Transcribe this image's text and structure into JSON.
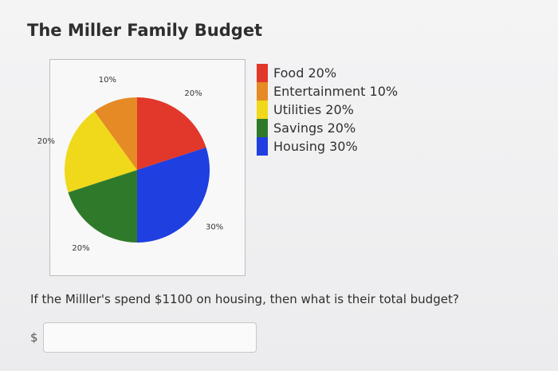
{
  "page": {
    "title": "The Miller Family Budget"
  },
  "chart_data": {
    "type": "pie",
    "title": "",
    "slices": [
      {
        "name": "Food",
        "value": 20,
        "label": "20%",
        "color": "#e2372b"
      },
      {
        "name": "Housing",
        "value": 30,
        "label": "30%",
        "color": "#1f3fe0"
      },
      {
        "name": "Savings",
        "value": 20,
        "label": "20%",
        "color": "#2f7a2a"
      },
      {
        "name": "Utilities",
        "value": 20,
        "label": "20%",
        "color": "#f0d81a"
      },
      {
        "name": "Entertainment",
        "value": 10,
        "label": "10%",
        "color": "#e58a25"
      }
    ],
    "legend": [
      {
        "text": "Food 20%",
        "color": "#e2372b"
      },
      {
        "text": "Entertainment 10%",
        "color": "#e58a25"
      },
      {
        "text": "Utilities 20%",
        "color": "#f0d81a"
      },
      {
        "text": "Savings 20%",
        "color": "#2f7a2a"
      },
      {
        "text": "Housing 30%",
        "color": "#1f3fe0"
      }
    ],
    "legend_position": "right"
  },
  "question": {
    "text": "If the Milller's spend $1100 on housing, then what is their total budget?",
    "currency_symbol": "$",
    "answer_value": "",
    "answer_placeholder": ""
  }
}
